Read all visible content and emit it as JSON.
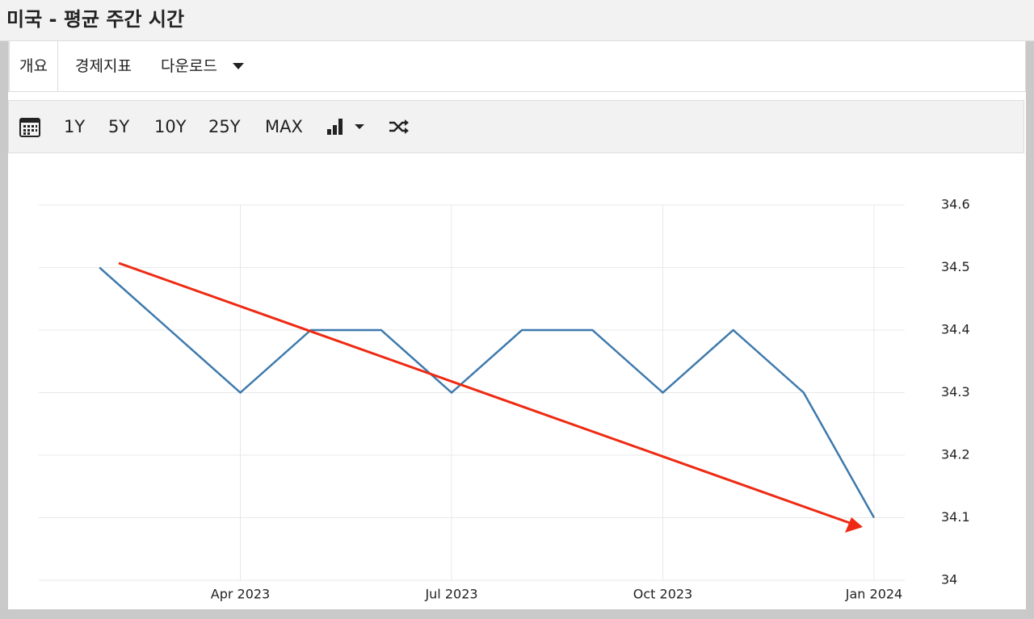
{
  "header": {
    "title": "미국 - 평균 주간 시간"
  },
  "tabs": [
    "개요",
    "경제지표",
    "다운로드"
  ],
  "toolbar": [
    "1Y",
    "5Y",
    "10Y",
    "25Y",
    "MAX"
  ],
  "chart_data": {
    "type": "line",
    "x": [
      "2023-02",
      "2023-03",
      "2023-04",
      "2023-05",
      "2023-06",
      "2023-07",
      "2023-08",
      "2023-09",
      "2023-10",
      "2023-11",
      "2023-12",
      "2024-01"
    ],
    "values": [
      34.5,
      34.4,
      34.3,
      34.4,
      34.4,
      34.3,
      34.4,
      34.4,
      34.3,
      34.4,
      34.3,
      34.1
    ],
    "color": "#3d79ac",
    "xlim": [
      "2023-01",
      "2024-01"
    ],
    "xticks": [
      {
        "value": "2023-04",
        "label": "Apr 2023"
      },
      {
        "value": "2023-07",
        "label": "Jul 2023"
      },
      {
        "value": "2023-10",
        "label": "Oct 2023"
      },
      {
        "value": "2024-01",
        "label": "Jan 2024"
      }
    ],
    "ylim": [
      34,
      34.6
    ],
    "yticks": [
      34,
      34.1,
      34.2,
      34.3,
      34.4,
      34.5,
      34.6
    ],
    "grid": true
  }
}
